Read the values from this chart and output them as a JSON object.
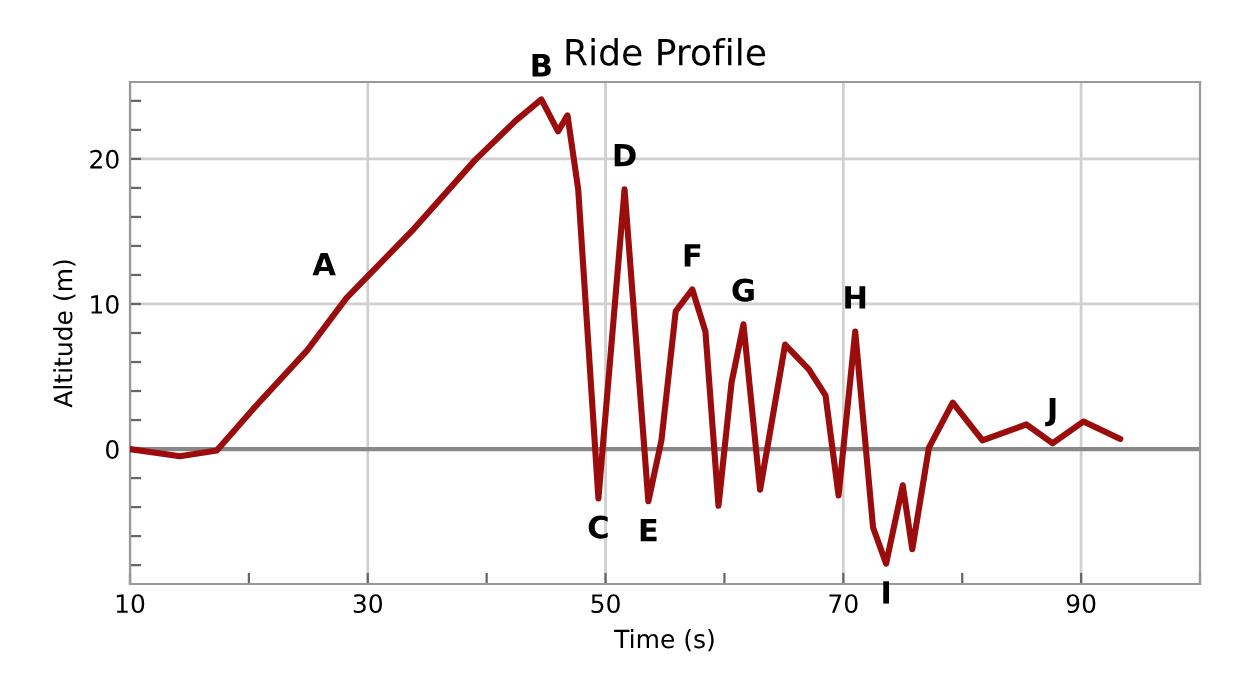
{
  "chart_data": {
    "type": "line",
    "title": "Ride Profile",
    "xlabel": "Time (s)",
    "ylabel": "Altitude (m)",
    "x": [
      10,
      14.2,
      17.3,
      20.4,
      24.9,
      28.2,
      33.9,
      39.0,
      42.4,
      44.6,
      46.0,
      46.8,
      47.7,
      49.4,
      51.6,
      53.6,
      54.7,
      55.9,
      57.3,
      58.4,
      59.5,
      60.6,
      61.6,
      63.0,
      65.1,
      67.1,
      68.5,
      69.6,
      71.0,
      72.5,
      73.6,
      75.0,
      75.8,
      77.2,
      79.2,
      81.7,
      85.4,
      87.6,
      90.2,
      93.3
    ],
    "series": [
      {
        "color": "#9b0d0d",
        "values": [
          0.0,
          -0.5,
          -0.1,
          2.8,
          6.8,
          10.4,
          15.2,
          19.9,
          22.6,
          24.1,
          21.9,
          23.0,
          17.9,
          -3.4,
          17.9,
          -3.6,
          0.6,
          9.5,
          11.0,
          8.1,
          -3.9,
          4.6,
          8.6,
          -2.8,
          7.2,
          5.5,
          3.7,
          -3.2,
          8.1,
          -5.4,
          -7.9,
          -2.5,
          -6.9,
          0.1,
          3.2,
          0.6,
          1.7,
          0.4,
          1.9,
          0.7
        ]
      }
    ],
    "xlim": [
      10,
      100
    ],
    "ylim": [
      -9.3,
      25.3
    ],
    "xticks": [
      10,
      {
        "value": 20,
        "label": null
      },
      30,
      {
        "value": 40,
        "label": null
      },
      50,
      {
        "value": 60,
        "label": null
      },
      70,
      {
        "value": 80,
        "label": null
      },
      90,
      {
        "value": 100,
        "label": null
      }
    ],
    "yticks": [
      {
        "value": -8,
        "label": null
      },
      {
        "value": -6,
        "label": null
      },
      {
        "value": -4,
        "label": null
      },
      {
        "value": -2,
        "label": null
      },
      0,
      {
        "value": 2,
        "label": null
      },
      {
        "value": 4,
        "label": null
      },
      {
        "value": 6,
        "label": null
      },
      {
        "value": 8,
        "label": null
      },
      10,
      {
        "value": 12,
        "label": null
      },
      {
        "value": 14,
        "label": null
      },
      {
        "value": 16,
        "label": null
      },
      {
        "value": 18,
        "label": null
      },
      20,
      {
        "value": 22,
        "label": null
      },
      {
        "value": 24,
        "label": null
      }
    ],
    "grid": true,
    "ref_lines": [
      {
        "axis": "y",
        "value": 0,
        "color": "#888888"
      }
    ],
    "annotations": [
      {
        "text": "A",
        "x": 28.2,
        "y": 10.4
      },
      {
        "text": "B",
        "x": 44.6,
        "y": 24.1
      },
      {
        "text": "C",
        "x": 49.4,
        "y": -3.4
      },
      {
        "text": "D",
        "x": 51.6,
        "y": 17.9
      },
      {
        "text": "E",
        "x": 53.6,
        "y": -3.6
      },
      {
        "text": "F",
        "x": 57.3,
        "y": 11.0
      },
      {
        "text": "G",
        "x": 61.6,
        "y": 8.6
      },
      {
        "text": "H",
        "x": 71.0,
        "y": 8.1
      },
      {
        "text": "I",
        "x": 73.6,
        "y": -7.9
      },
      {
        "text": "J",
        "x": 87.6,
        "y": 0.4
      }
    ]
  }
}
